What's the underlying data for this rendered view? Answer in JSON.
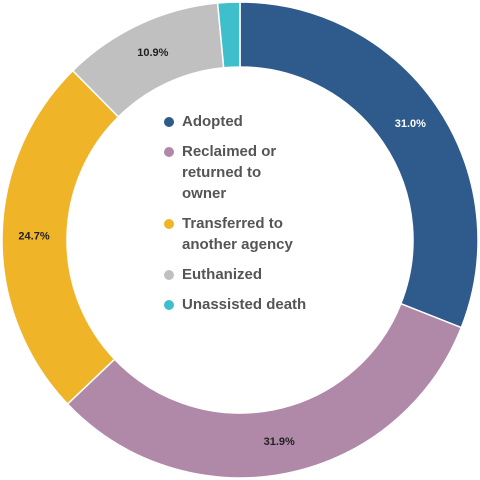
{
  "chart_data": {
    "type": "donut",
    "categories": [
      "Adopted",
      "Reclaimed or\nreturned to\nowner",
      "Transferred to\nanother agency",
      "Euthanized",
      "Unassisted death"
    ],
    "values": [
      31.0,
      31.9,
      24.7,
      10.9,
      1.5
    ],
    "value_labels": [
      "31.0%",
      "31.9%",
      "24.7%",
      "10.9%",
      null
    ],
    "colors": [
      "#2e5a8c",
      "#b088a8",
      "#f0b429",
      "#c0c0c0",
      "#3fbfcc"
    ],
    "legend": "center"
  }
}
